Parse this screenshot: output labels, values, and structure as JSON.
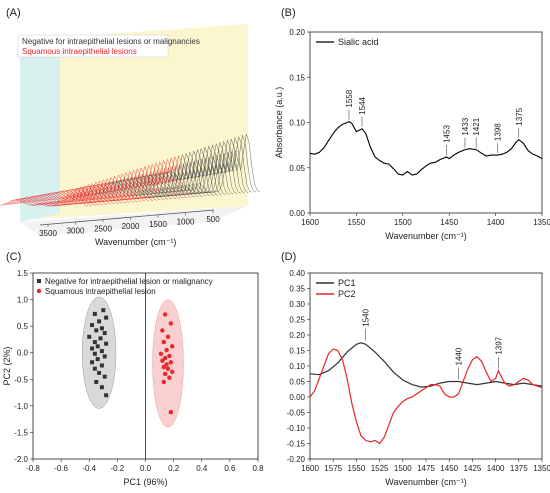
{
  "panels": {
    "A": "(A)",
    "B": "(B)",
    "C": "(C)",
    "D": "(D)"
  },
  "chart_data": [
    {
      "panel": "A",
      "type": "line",
      "description_3d": "waterfall of stacked FTIR spectra",
      "xlabel": "Wavenumber (cm⁻¹)",
      "xticks": [
        "3500",
        "3000",
        "2500",
        "2000",
        "1500",
        "1000",
        "500"
      ],
      "legend": [
        {
          "label": "Negative for intraepithelial lesions or malignancies",
          "color": "#333333"
        },
        {
          "label": "Squamous intraepithelial lesions",
          "color": "#e8262b"
        }
      ]
    },
    {
      "panel": "B",
      "type": "line",
      "xlabel": "Wavenumber (cm⁻¹)",
      "ylabel": "Absorbance (a.u.)",
      "xlim": [
        1600,
        1350
      ],
      "ylim": [
        0,
        0.2
      ],
      "xticks": [
        1600,
        1550,
        1500,
        1450,
        1400,
        1350
      ],
      "yticks": [
        "0.00",
        "0.05",
        "0.10",
        "0.15",
        "0.20"
      ],
      "legend": [
        {
          "label": "Sialic acid",
          "color": "#000000"
        }
      ],
      "series": [
        {
          "name": "Sialic acid",
          "x": [
            1600,
            1595,
            1590,
            1585,
            1580,
            1575,
            1570,
            1565,
            1560,
            1558,
            1555,
            1550,
            1544,
            1540,
            1535,
            1530,
            1525,
            1520,
            1515,
            1510,
            1505,
            1500,
            1495,
            1490,
            1485,
            1480,
            1475,
            1470,
            1465,
            1460,
            1455,
            1453,
            1450,
            1445,
            1440,
            1433,
            1428,
            1421,
            1415,
            1410,
            1405,
            1398,
            1393,
            1388,
            1383,
            1378,
            1375,
            1370,
            1365,
            1360,
            1355,
            1350
          ],
          "y": [
            0.066,
            0.065,
            0.067,
            0.072,
            0.08,
            0.088,
            0.094,
            0.098,
            0.1,
            0.101,
            0.099,
            0.09,
            0.093,
            0.088,
            0.073,
            0.062,
            0.058,
            0.055,
            0.054,
            0.049,
            0.043,
            0.042,
            0.046,
            0.042,
            0.043,
            0.048,
            0.052,
            0.055,
            0.056,
            0.059,
            0.061,
            0.062,
            0.06,
            0.064,
            0.067,
            0.07,
            0.071,
            0.07,
            0.066,
            0.063,
            0.064,
            0.064,
            0.065,
            0.067,
            0.071,
            0.078,
            0.081,
            0.077,
            0.069,
            0.065,
            0.063,
            0.06
          ]
        }
      ],
      "annotations": [
        {
          "label": "1558",
          "x": 1558,
          "y": 0.101
        },
        {
          "label": "1544",
          "x": 1544,
          "y": 0.093
        },
        {
          "label": "1453",
          "x": 1453,
          "y": 0.062
        },
        {
          "label": "1433",
          "x": 1433,
          "y": 0.07
        },
        {
          "label": "1421",
          "x": 1421,
          "y": 0.07
        },
        {
          "label": "1398",
          "x": 1398,
          "y": 0.064
        },
        {
          "label": "1375",
          "x": 1375,
          "y": 0.081
        }
      ]
    },
    {
      "panel": "C",
      "type": "scatter",
      "xlabel": "PC1 (96%)",
      "ylabel": "PC2 (2%)",
      "xlim": [
        -0.8,
        0.8
      ],
      "ylim": [
        -2.0,
        1.5
      ],
      "xticks": [
        "-0.8",
        "-0.6",
        "-0.4",
        "-0.2",
        "0.0",
        "0.2",
        "0.4",
        "0.6",
        "0.8"
      ],
      "yticks": [
        "-2.0",
        "-1.5",
        "-1.0",
        "-0.5",
        "0.0",
        "0.5",
        "1.0",
        "1.5"
      ],
      "series": [
        {
          "name": "Negative for intraepithelial lesion or malignancy",
          "color": "#333333",
          "marker": "square",
          "ellipse": {
            "cx": -0.33,
            "cy": 0.0,
            "rx": 0.12,
            "ry": 1.05,
            "fill": "#d9d9d9"
          },
          "points": [
            [
              -0.3,
              0.8
            ],
            [
              -0.36,
              0.73
            ],
            [
              -0.28,
              0.66
            ],
            [
              -0.33,
              0.59
            ],
            [
              -0.38,
              0.52
            ],
            [
              -0.31,
              0.46
            ],
            [
              -0.35,
              0.42
            ],
            [
              -0.29,
              0.37
            ],
            [
              -0.4,
              0.3
            ],
            [
              -0.32,
              0.27
            ],
            [
              -0.36,
              0.2
            ],
            [
              -0.28,
              0.17
            ],
            [
              -0.34,
              0.12
            ],
            [
              -0.38,
              0.08
            ],
            [
              -0.31,
              0.03
            ],
            [
              -0.36,
              -0.02
            ],
            [
              -0.29,
              -0.07
            ],
            [
              -0.34,
              -0.12
            ],
            [
              -0.38,
              -0.18
            ],
            [
              -0.31,
              -0.24
            ],
            [
              -0.36,
              -0.3
            ],
            [
              -0.33,
              -0.38
            ],
            [
              -0.29,
              -0.45
            ],
            [
              -0.35,
              -0.55
            ],
            [
              -0.31,
              -0.65
            ],
            [
              -0.28,
              -0.8
            ]
          ]
        },
        {
          "name": "Squamous intraepithelial lesion",
          "color": "#e8262b",
          "marker": "circle",
          "ellipse": {
            "cx": 0.16,
            "cy": -0.2,
            "rx": 0.11,
            "ry": 1.2,
            "fill": "#f9cfd0"
          },
          "points": [
            [
              0.14,
              0.72
            ],
            [
              0.18,
              0.55
            ],
            [
              0.12,
              0.42
            ],
            [
              0.16,
              0.3
            ],
            [
              0.13,
              0.2
            ],
            [
              0.19,
              0.12
            ],
            [
              0.15,
              0.05
            ],
            [
              0.11,
              -0.02
            ],
            [
              0.17,
              -0.06
            ],
            [
              0.14,
              -0.1
            ],
            [
              0.12,
              -0.15
            ],
            [
              0.18,
              -0.18
            ],
            [
              0.15,
              -0.22
            ],
            [
              0.13,
              -0.27
            ],
            [
              0.16,
              -0.3
            ],
            [
              0.19,
              -0.36
            ],
            [
              0.14,
              -0.4
            ],
            [
              0.17,
              -0.47
            ],
            [
              0.13,
              -0.55
            ],
            [
              0.18,
              -1.12
            ]
          ]
        }
      ]
    },
    {
      "panel": "D",
      "type": "line",
      "xlabel": "Wavenumber (cm⁻¹)",
      "xlim": [
        1600,
        1350
      ],
      "ylim": [
        -0.2,
        0.4
      ],
      "xticks": [
        1600,
        1575,
        1550,
        1525,
        1500,
        1475,
        1450,
        1425,
        1400,
        1375,
        1350
      ],
      "yticks": [
        "-0.20",
        "-0.15",
        "-0.10",
        "-0.05",
        "0.00",
        "0.05",
        "0.10",
        "0.15",
        "0.20",
        "0.25",
        "0.30",
        "0.35",
        "0.40"
      ],
      "series": [
        {
          "name": "PC1",
          "color": "#333333",
          "x": [
            1600,
            1590,
            1580,
            1570,
            1560,
            1550,
            1545,
            1540,
            1530,
            1520,
            1510,
            1500,
            1490,
            1480,
            1470,
            1460,
            1450,
            1440,
            1430,
            1420,
            1410,
            1400,
            1390,
            1380,
            1370,
            1360,
            1350
          ],
          "y": [
            0.075,
            0.072,
            0.085,
            0.11,
            0.145,
            0.17,
            0.175,
            0.17,
            0.145,
            0.115,
            0.08,
            0.055,
            0.04,
            0.032,
            0.035,
            0.045,
            0.05,
            0.05,
            0.045,
            0.04,
            0.045,
            0.05,
            0.045,
            0.04,
            0.045,
            0.04,
            0.035
          ]
        },
        {
          "name": "PC2",
          "color": "#e8262b",
          "x": [
            1600,
            1595,
            1590,
            1585,
            1580,
            1575,
            1570,
            1565,
            1560,
            1555,
            1550,
            1545,
            1540,
            1535,
            1530,
            1525,
            1520,
            1515,
            1510,
            1505,
            1500,
            1495,
            1490,
            1485,
            1480,
            1475,
            1470,
            1465,
            1460,
            1455,
            1450,
            1445,
            1440,
            1435,
            1430,
            1425,
            1420,
            1415,
            1410,
            1405,
            1400,
            1397,
            1393,
            1390,
            1385,
            1380,
            1375,
            1370,
            1365,
            1360,
            1355,
            1350
          ],
          "y": [
            0.0,
            0.02,
            0.06,
            0.1,
            0.14,
            0.155,
            0.15,
            0.12,
            0.06,
            -0.02,
            -0.08,
            -0.125,
            -0.14,
            -0.145,
            -0.14,
            -0.15,
            -0.13,
            -0.09,
            -0.05,
            -0.03,
            -0.015,
            -0.005,
            0.0,
            0.01,
            0.02,
            0.03,
            0.04,
            0.04,
            0.035,
            0.01,
            0.0,
            0.0,
            0.01,
            0.05,
            0.09,
            0.12,
            0.13,
            0.115,
            0.08,
            0.05,
            0.06,
            0.085,
            0.06,
            0.045,
            0.035,
            0.04,
            0.05,
            0.06,
            0.055,
            0.04,
            0.035,
            0.03
          ]
        }
      ],
      "annotations": [
        {
          "label": "1540",
          "x": 1540,
          "y": 0.175
        },
        {
          "label": "1440",
          "x": 1440,
          "y": 0.05
        },
        {
          "label": "1397",
          "x": 1397,
          "y": 0.085
        }
      ]
    }
  ]
}
